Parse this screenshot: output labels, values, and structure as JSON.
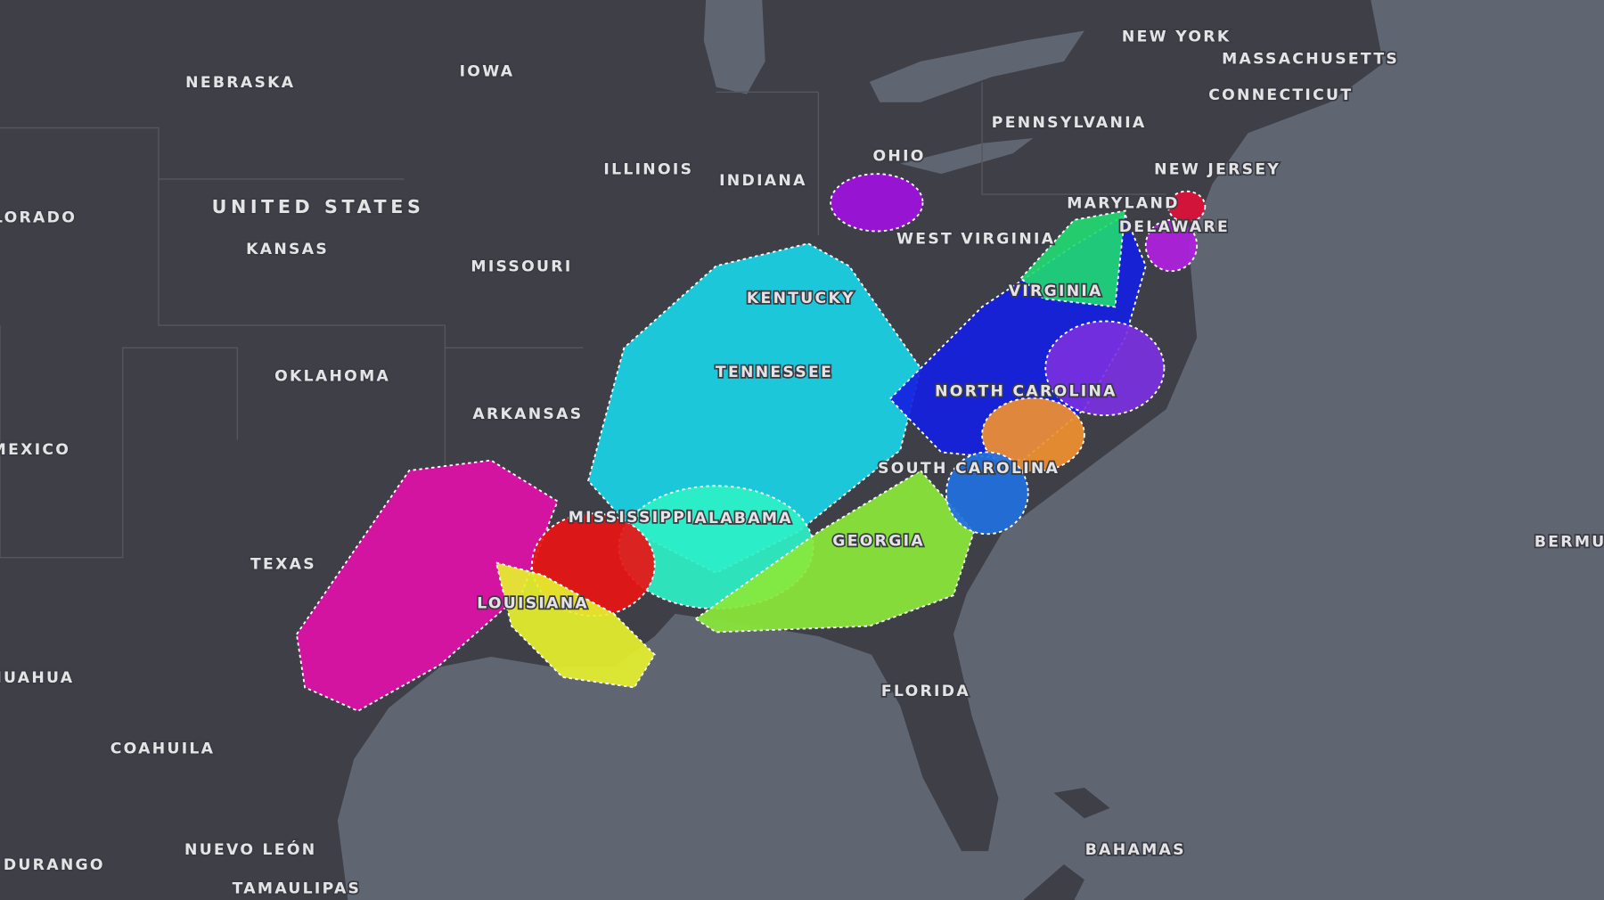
{
  "map": {
    "labels": [
      "NEBRASKA",
      "IOWA",
      "ILLINOIS",
      "INDIANA",
      "OHIO",
      "NEW YORK",
      "MASSACHUSETTS",
      "CONNECTICUT",
      "PENNSYLVANIA",
      "NEW JERSEY",
      "MARYLAND",
      "DELAWARE",
      "WEST VIRGINIA",
      "UNITED STATES",
      "LORADO",
      "KANSAS",
      "MISSOURI",
      "KENTUCKY",
      "VIRGINIA",
      "TENNESSEE",
      "OKLAHOMA",
      "NORTH CAROLINA",
      "ARKANSAS",
      "MEXICO",
      "SOUTH CAROLINA",
      "MISSISSIPPI",
      "ALABAMA",
      "GEORGIA",
      "TEXAS",
      "BERMU",
      "LOUISIANA",
      "AHUAHUA",
      "FLORIDA",
      "COAHUILA",
      "BAHAMAS",
      "NUEVO LEÓN",
      "DURANGO",
      "TAMAULIPAS"
    ]
  }
}
